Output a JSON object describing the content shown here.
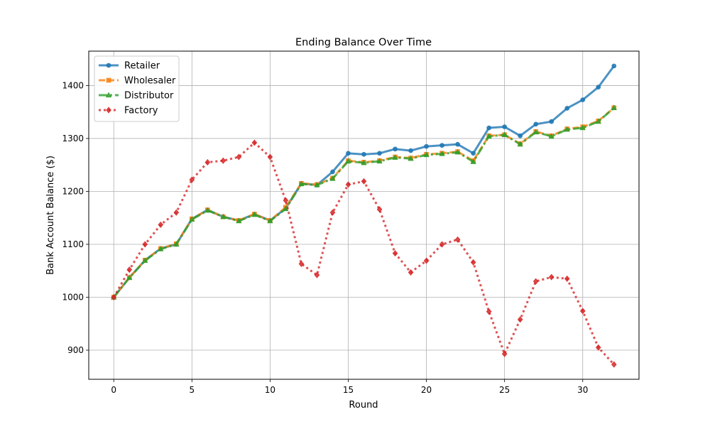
{
  "chart_data": {
    "type": "line",
    "title": "Ending Balance Over Time",
    "xlabel": "Round",
    "ylabel": "Bank Account Balance ($)",
    "xlim": [
      -1.6,
      33.6
    ],
    "ylim": [
      845,
      1465
    ],
    "xticks": [
      0,
      5,
      10,
      15,
      20,
      25,
      30
    ],
    "yticks": [
      900,
      1000,
      1100,
      1200,
      1300,
      1400
    ],
    "grid": true,
    "legend_position": "top-left",
    "x": [
      0,
      1,
      2,
      3,
      4,
      5,
      6,
      7,
      8,
      9,
      10,
      11,
      12,
      13,
      14,
      15,
      16,
      17,
      18,
      19,
      20,
      21,
      22,
      23,
      24,
      25,
      26,
      27,
      28,
      29,
      30,
      31,
      32
    ],
    "series": [
      {
        "name": "Retailer",
        "color": "#1f77b4",
        "line_style": "solid",
        "marker": "circle",
        "values": [
          1000,
          1037,
          1070,
          1092,
          1100,
          1148,
          1165,
          1152,
          1145,
          1157,
          1145,
          1168,
          1215,
          1212,
          1237,
          1272,
          1270,
          1272,
          1280,
          1277,
          1285,
          1287,
          1289,
          1272,
          1320,
          1322,
          1305,
          1327,
          1332,
          1357,
          1373,
          1397,
          1437
        ]
      },
      {
        "name": "Wholesaler",
        "color": "#ff7f0e",
        "line_style": "dashed",
        "marker": "square",
        "values": [
          1000,
          1037,
          1070,
          1092,
          1101,
          1148,
          1165,
          1152,
          1145,
          1157,
          1145,
          1170,
          1215,
          1213,
          1225,
          1258,
          1255,
          1258,
          1265,
          1263,
          1270,
          1272,
          1275,
          1258,
          1305,
          1307,
          1290,
          1313,
          1305,
          1318,
          1322,
          1333,
          1358
        ]
      },
      {
        "name": "Distributor",
        "color": "#2ca02c",
        "line_style": "dash-dot",
        "marker": "triangle",
        "values": [
          1000,
          1037,
          1069,
          1091,
          1100,
          1147,
          1164,
          1152,
          1144,
          1156,
          1144,
          1167,
          1214,
          1212,
          1224,
          1257,
          1254,
          1257,
          1264,
          1262,
          1269,
          1271,
          1274,
          1256,
          1304,
          1307,
          1289,
          1312,
          1304,
          1317,
          1320,
          1332,
          1358
        ]
      },
      {
        "name": "Factory",
        "color": "#d62728",
        "line_style": "dotted",
        "marker": "diamond",
        "values": [
          1000,
          1052,
          1100,
          1137,
          1160,
          1222,
          1255,
          1258,
          1265,
          1292,
          1265,
          1183,
          1063,
          1042,
          1160,
          1213,
          1219,
          1166,
          1083,
          1047,
          1069,
          1100,
          1109,
          1066,
          973,
          893,
          958,
          1030,
          1038,
          1035,
          974,
          905,
          873
        ]
      }
    ]
  }
}
